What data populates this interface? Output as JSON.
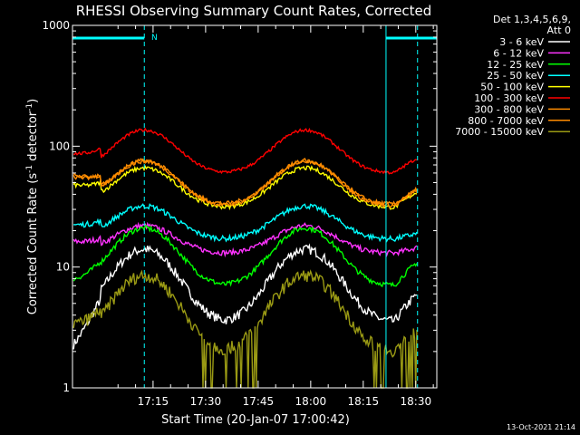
{
  "chart_data": {
    "type": "line",
    "title": "RHESSI Observing Summary Count Rates, Corrected",
    "xlabel": "Start Time (20-Jan-07 17:00:42)",
    "ylabel_main": "Corrected Count Rate (s",
    "ylabel_sup1": "-1",
    "ylabel_mid": " detector",
    "ylabel_sup2": "-1",
    "ylabel_end": ")",
    "y_scale": "log",
    "ylim": [
      1,
      1000
    ],
    "y_ticks": [
      {
        "value": 1,
        "label": "1"
      },
      {
        "value": 10,
        "label": "10"
      },
      {
        "value": 100,
        "label": "100"
      },
      {
        "value": 1000,
        "label": "1000"
      }
    ],
    "xlim_minutes": [
      -8,
      96
    ],
    "x_ticks": [
      {
        "minute": 15,
        "label": "17:15"
      },
      {
        "minute": 30,
        "label": "17:30"
      },
      {
        "minute": 45,
        "label": "17:45"
      },
      {
        "minute": 60,
        "label": "18:00"
      },
      {
        "minute": 75,
        "label": "18:15"
      },
      {
        "minute": 90,
        "label": "18:30"
      }
    ],
    "legend_header": [
      "Det 1,3,4,5,6,9,",
      "Att 0"
    ],
    "legend_position": "right",
    "series": [
      {
        "name": "3 - 6 keV",
        "color": "#ffffff",
        "base": 3.5,
        "peak": 14,
        "start": 1.9,
        "end": 6,
        "noise": 0.09
      },
      {
        "name": "6 - 12 keV",
        "color": "#ff33ff",
        "base": 13,
        "peak": 22,
        "start": 16,
        "end": 14.5,
        "noise": 0.05
      },
      {
        "name": "12 - 25 keV",
        "color": "#00ff00",
        "base": 7,
        "peak": 21,
        "start": 7.5,
        "end": 11,
        "noise": 0.05
      },
      {
        "name": "25 - 50 keV",
        "color": "#00ffff",
        "base": 17,
        "peak": 32,
        "start": 22,
        "end": 19,
        "noise": 0.05
      },
      {
        "name": "50 - 100 keV",
        "color": "#ffff00",
        "base": 31,
        "peak": 66,
        "start": 47,
        "end": 42,
        "noise": 0.04
      },
      {
        "name": "100 - 300 keV",
        "color": "#ff0000",
        "base": 60,
        "peak": 136,
        "start": 85,
        "end": 80,
        "noise": 0.03
      },
      {
        "name": "300 - 800 keV",
        "color": "#ff8c00",
        "base": 32,
        "peak": 76,
        "start": 55,
        "end": 43,
        "noise": 0.04
      },
      {
        "name": "800 - 7000 keV",
        "color": "#ff8c00",
        "base": 33,
        "peak": 75,
        "start": 56,
        "end": 44,
        "noise": 0.04
      },
      {
        "name": "7000 - 15000 keV",
        "color": "#9a9a14",
        "base": 2,
        "peak": 8.5,
        "start": 3.2,
        "end": 3,
        "noise": 0.12
      }
    ],
    "peaks_minutes": [
      12.5,
      58.5
    ],
    "dashed_markers_minutes": [
      12.5,
      90.5
    ],
    "solid_markers_minutes": [
      -8,
      81.5
    ],
    "top_bars_minutes": [
      [
        -8,
        12.5
      ],
      [
        81.5,
        96
      ]
    ],
    "top_annotation": {
      "minute": 14.5,
      "label": "N"
    },
    "low_gap_minutes": [
      [
        45,
        75
      ]
    ],
    "marker_color": "#00ffff"
  },
  "footer": {
    "date": "13-Oct-2021 21:14"
  }
}
